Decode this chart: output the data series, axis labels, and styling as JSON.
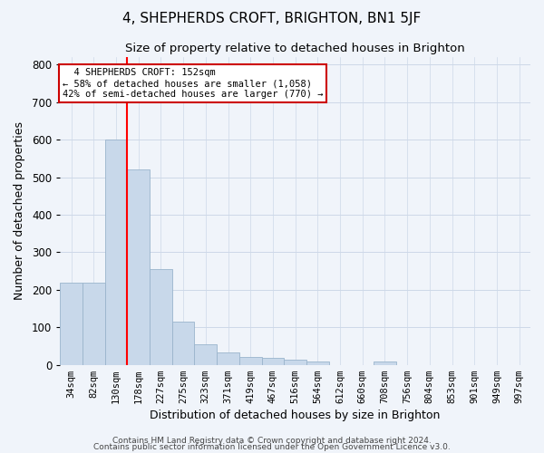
{
  "title": "4, SHEPHERDS CROFT, BRIGHTON, BN1 5JF",
  "subtitle": "Size of property relative to detached houses in Brighton",
  "xlabel": "Distribution of detached houses by size in Brighton",
  "ylabel": "Number of detached properties",
  "bar_labels": [
    "34sqm",
    "82sqm",
    "130sqm",
    "178sqm",
    "227sqm",
    "275sqm",
    "323sqm",
    "371sqm",
    "419sqm",
    "467sqm",
    "516sqm",
    "564sqm",
    "612sqm",
    "660sqm",
    "708sqm",
    "756sqm",
    "804sqm",
    "853sqm",
    "901sqm",
    "949sqm",
    "997sqm"
  ],
  "bar_heights": [
    218,
    218,
    600,
    520,
    255,
    115,
    55,
    33,
    20,
    18,
    13,
    10,
    0,
    0,
    8,
    0,
    0,
    0,
    0,
    0,
    0
  ],
  "bar_color": "#c8d8ea",
  "bar_edge_color": "#9ab4cc",
  "red_line_x": 2.5,
  "ylim": [
    0,
    820
  ],
  "yticks": [
    0,
    100,
    200,
    300,
    400,
    500,
    600,
    700,
    800
  ],
  "annotation_text": "  4 SHEPHERDS CROFT: 152sqm\n← 58% of detached houses are smaller (1,058)\n42% of semi-detached houses are larger (770) →",
  "annotation_box_color": "#ffffff",
  "annotation_box_edge_color": "#cc0000",
  "footer_line1": "Contains HM Land Registry data © Crown copyright and database right 2024.",
  "footer_line2": "Contains public sector information licensed under the Open Government Licence v3.0.",
  "background_color": "#f0f4fa",
  "grid_color": "#cdd8e8",
  "title_fontsize": 11,
  "subtitle_fontsize": 9.5
}
